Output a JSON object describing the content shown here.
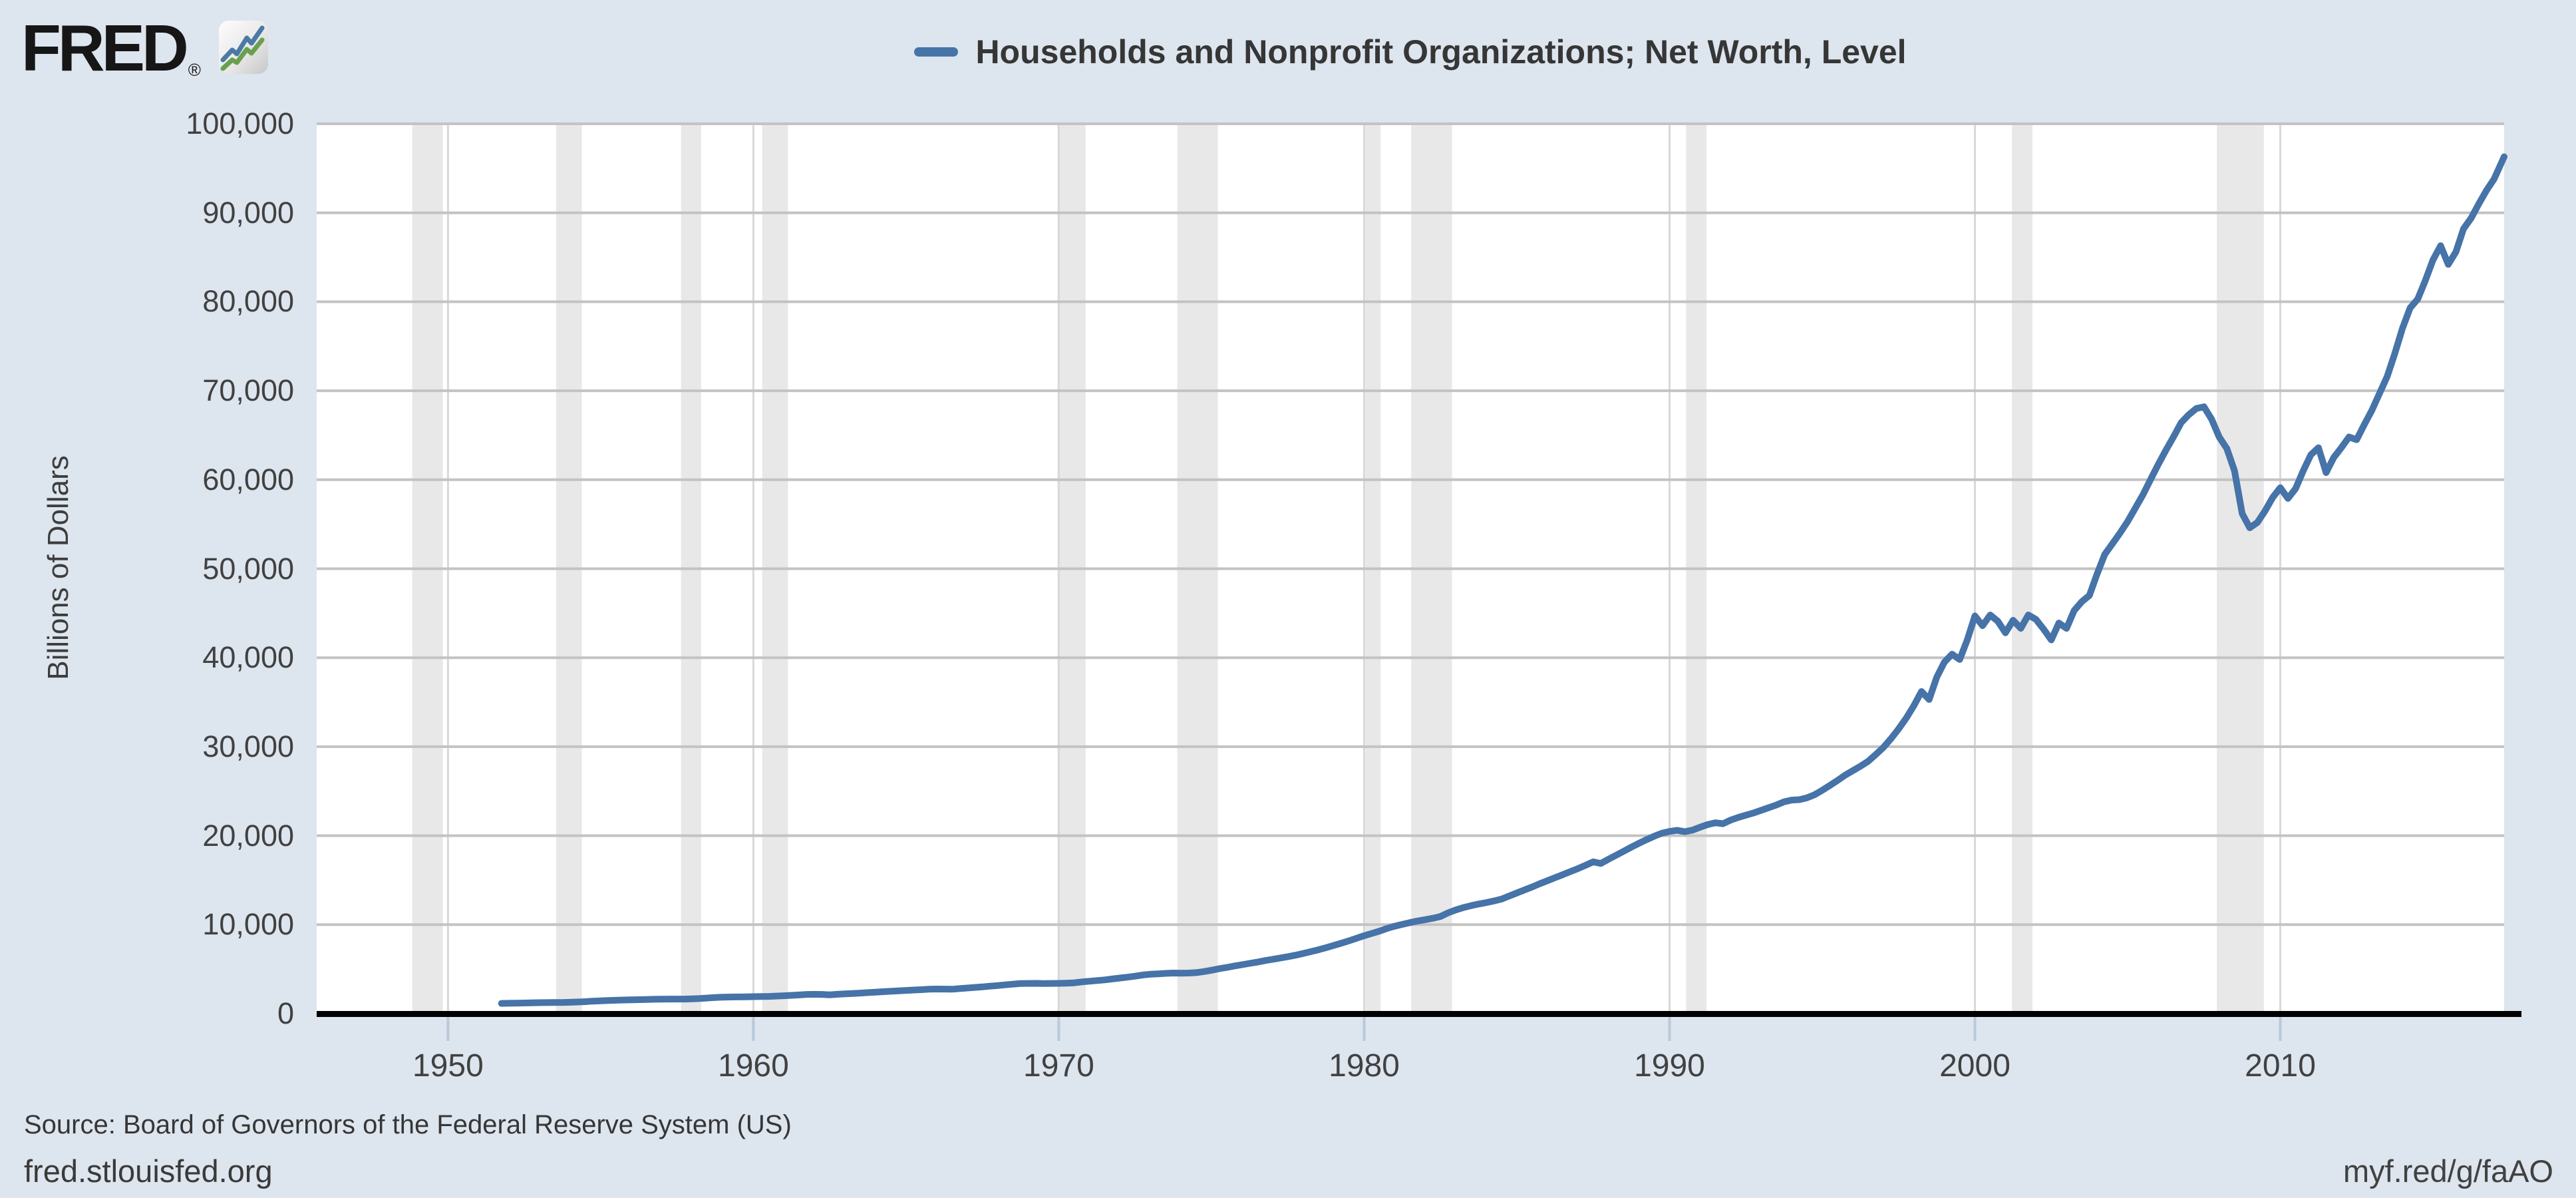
{
  "header": {
    "logo_text": "FRED",
    "registered_mark": "®"
  },
  "footer": {
    "source": "Source: Board of Governors of the Federal Reserve System (US)",
    "site_link": "fred.stlouisfed.org",
    "short_link": "myf.red/g/faAO"
  },
  "colors": {
    "page_bg": "#dde5ee",
    "plot_bg": "#ffffff",
    "recession_band": "#e8e8e8",
    "hgrid": "#c3c3c3",
    "vgrid": "#d9d9d9",
    "line": "#4673a8",
    "axis": "#000000",
    "tick": "#b9c9d9",
    "icon_blue": "#4a7aa5",
    "icon_green": "#68a04f"
  },
  "chart_data": {
    "type": "line",
    "title": "Households and Nonprofit Organizations; Net Worth, Level",
    "xlabel": "",
    "ylabel": "Billions of Dollars",
    "xlim": [
      1945.7,
      2017.33
    ],
    "ylim": [
      0,
      100000
    ],
    "grid": true,
    "legend_position": "top-center",
    "x_ticks": [
      {
        "v": 1950,
        "label": "1950"
      },
      {
        "v": 1960,
        "label": "1960"
      },
      {
        "v": 1970,
        "label": "1970"
      },
      {
        "v": 1980,
        "label": "1980"
      },
      {
        "v": 1990,
        "label": "1990"
      },
      {
        "v": 2000,
        "label": "2000"
      },
      {
        "v": 2010,
        "label": "2010"
      }
    ],
    "y_ticks": [
      {
        "v": 0,
        "label": "0"
      },
      {
        "v": 10000,
        "label": "10,000"
      },
      {
        "v": 20000,
        "label": "20,000"
      },
      {
        "v": 30000,
        "label": "30,000"
      },
      {
        "v": 40000,
        "label": "40,000"
      },
      {
        "v": 50000,
        "label": "50,000"
      },
      {
        "v": 60000,
        "label": "60,000"
      },
      {
        "v": 70000,
        "label": "70,000"
      },
      {
        "v": 80000,
        "label": "80,000"
      },
      {
        "v": 90000,
        "label": "90,000"
      },
      {
        "v": 100000,
        "label": "100,000"
      }
    ],
    "recessions": [
      [
        1948.83,
        1949.83
      ],
      [
        1953.54,
        1954.38
      ],
      [
        1957.63,
        1958.29
      ],
      [
        1960.29,
        1961.13
      ],
      [
        1969.96,
        1970.88
      ],
      [
        1973.88,
        1975.21
      ],
      [
        1980.04,
        1980.54
      ],
      [
        1981.54,
        1982.88
      ],
      [
        1990.54,
        1991.21
      ],
      [
        2001.21,
        2001.88
      ],
      [
        2007.92,
        2009.46
      ]
    ],
    "series": [
      {
        "name": "Households and Nonprofit Organizations; Net Worth, Level",
        "color": "#4673a8",
        "points": [
          [
            1951.75,
            1150
          ],
          [
            1952,
            1170
          ],
          [
            1952.25,
            1185
          ],
          [
            1952.5,
            1200
          ],
          [
            1952.75,
            1220
          ],
          [
            1953,
            1235
          ],
          [
            1953.25,
            1245
          ],
          [
            1953.5,
            1250
          ],
          [
            1953.75,
            1260
          ],
          [
            1954,
            1280
          ],
          [
            1954.25,
            1310
          ],
          [
            1954.5,
            1350
          ],
          [
            1954.75,
            1405
          ],
          [
            1955,
            1445
          ],
          [
            1955.25,
            1480
          ],
          [
            1955.5,
            1505
          ],
          [
            1955.75,
            1530
          ],
          [
            1956,
            1550
          ],
          [
            1956.25,
            1570
          ],
          [
            1956.5,
            1590
          ],
          [
            1956.75,
            1615
          ],
          [
            1957,
            1620
          ],
          [
            1957.25,
            1635
          ],
          [
            1957.5,
            1640
          ],
          [
            1957.75,
            1635
          ],
          [
            1958,
            1660
          ],
          [
            1958.25,
            1700
          ],
          [
            1958.5,
            1755
          ],
          [
            1958.75,
            1810
          ],
          [
            1959,
            1850
          ],
          [
            1959.25,
            1870
          ],
          [
            1959.5,
            1880
          ],
          [
            1959.75,
            1895
          ],
          [
            1960,
            1910
          ],
          [
            1960.25,
            1925
          ],
          [
            1960.5,
            1940
          ],
          [
            1960.75,
            1975
          ],
          [
            1961,
            2015
          ],
          [
            1961.25,
            2060
          ],
          [
            1961.5,
            2105
          ],
          [
            1961.75,
            2165
          ],
          [
            1962,
            2170
          ],
          [
            1962.25,
            2160
          ],
          [
            1962.5,
            2115
          ],
          [
            1962.75,
            2175
          ],
          [
            1963,
            2230
          ],
          [
            1963.25,
            2270
          ],
          [
            1963.5,
            2310
          ],
          [
            1963.75,
            2365
          ],
          [
            1964,
            2415
          ],
          [
            1964.25,
            2465
          ],
          [
            1964.5,
            2510
          ],
          [
            1964.75,
            2560
          ],
          [
            1965,
            2610
          ],
          [
            1965.25,
            2655
          ],
          [
            1965.5,
            2695
          ],
          [
            1965.75,
            2745
          ],
          [
            1966,
            2765
          ],
          [
            1966.25,
            2760
          ],
          [
            1966.5,
            2745
          ],
          [
            1966.75,
            2815
          ],
          [
            1967,
            2880
          ],
          [
            1967.25,
            2950
          ],
          [
            1967.5,
            3010
          ],
          [
            1967.75,
            3090
          ],
          [
            1968,
            3160
          ],
          [
            1968.25,
            3240
          ],
          [
            1968.5,
            3310
          ],
          [
            1968.75,
            3385
          ],
          [
            1969,
            3395
          ],
          [
            1969.25,
            3400
          ],
          [
            1969.5,
            3390
          ],
          [
            1969.75,
            3395
          ],
          [
            1970,
            3405
          ],
          [
            1970.25,
            3425
          ],
          [
            1970.5,
            3465
          ],
          [
            1970.75,
            3565
          ],
          [
            1971,
            3640
          ],
          [
            1971.25,
            3720
          ],
          [
            1971.5,
            3790
          ],
          [
            1971.75,
            3895
          ],
          [
            1972,
            4000
          ],
          [
            1972.25,
            4100
          ],
          [
            1972.5,
            4210
          ],
          [
            1972.75,
            4345
          ],
          [
            1973,
            4425
          ],
          [
            1973.25,
            4475
          ],
          [
            1973.5,
            4525
          ],
          [
            1973.75,
            4565
          ],
          [
            1974,
            4550
          ],
          [
            1974.25,
            4560
          ],
          [
            1974.5,
            4605
          ],
          [
            1974.75,
            4725
          ],
          [
            1975,
            4880
          ],
          [
            1975.25,
            5045
          ],
          [
            1975.5,
            5190
          ],
          [
            1975.75,
            5355
          ],
          [
            1976,
            5500
          ],
          [
            1976.25,
            5645
          ],
          [
            1976.5,
            5790
          ],
          [
            1976.75,
            5960
          ],
          [
            1977,
            6100
          ],
          [
            1977.25,
            6250
          ],
          [
            1977.5,
            6400
          ],
          [
            1977.75,
            6570
          ],
          [
            1978,
            6760
          ],
          [
            1978.25,
            6960
          ],
          [
            1978.5,
            7170
          ],
          [
            1978.75,
            7410
          ],
          [
            1979,
            7660
          ],
          [
            1979.25,
            7915
          ],
          [
            1979.5,
            8180
          ],
          [
            1979.75,
            8465
          ],
          [
            1980,
            8760
          ],
          [
            1980.25,
            9010
          ],
          [
            1980.5,
            9265
          ],
          [
            1980.75,
            9575
          ],
          [
            1981,
            9830
          ],
          [
            1981.25,
            10030
          ],
          [
            1981.5,
            10230
          ],
          [
            1981.75,
            10410
          ],
          [
            1982,
            10560
          ],
          [
            1982.25,
            10720
          ],
          [
            1982.5,
            10920
          ],
          [
            1982.75,
            11330
          ],
          [
            1983,
            11650
          ],
          [
            1983.25,
            11920
          ],
          [
            1983.5,
            12130
          ],
          [
            1983.75,
            12320
          ],
          [
            1984,
            12480
          ],
          [
            1984.25,
            12660
          ],
          [
            1984.5,
            12870
          ],
          [
            1984.75,
            13220
          ],
          [
            1985,
            13560
          ],
          [
            1985.25,
            13900
          ],
          [
            1985.5,
            14230
          ],
          [
            1985.75,
            14600
          ],
          [
            1986,
            14940
          ],
          [
            1986.25,
            15280
          ],
          [
            1986.5,
            15610
          ],
          [
            1986.75,
            15960
          ],
          [
            1987,
            16300
          ],
          [
            1987.25,
            16670
          ],
          [
            1987.5,
            17060
          ],
          [
            1987.75,
            16870
          ],
          [
            1988,
            17350
          ],
          [
            1988.25,
            17800
          ],
          [
            1988.5,
            18250
          ],
          [
            1988.75,
            18710
          ],
          [
            1989,
            19150
          ],
          [
            1989.25,
            19560
          ],
          [
            1989.5,
            19940
          ],
          [
            1989.75,
            20280
          ],
          [
            1990,
            20480
          ],
          [
            1990.25,
            20600
          ],
          [
            1990.5,
            20450
          ],
          [
            1990.75,
            20620
          ],
          [
            1991,
            20950
          ],
          [
            1991.25,
            21250
          ],
          [
            1991.5,
            21450
          ],
          [
            1991.75,
            21350
          ],
          [
            1992,
            21750
          ],
          [
            1992.25,
            22050
          ],
          [
            1992.5,
            22300
          ],
          [
            1992.75,
            22550
          ],
          [
            1993,
            22850
          ],
          [
            1993.25,
            23150
          ],
          [
            1993.5,
            23450
          ],
          [
            1993.75,
            23800
          ],
          [
            1994,
            24000
          ],
          [
            1994.25,
            24050
          ],
          [
            1994.5,
            24250
          ],
          [
            1994.75,
            24600
          ],
          [
            1995,
            25100
          ],
          [
            1995.25,
            25650
          ],
          [
            1995.5,
            26200
          ],
          [
            1995.75,
            26800
          ],
          [
            1996,
            27300
          ],
          [
            1996.25,
            27800
          ],
          [
            1996.5,
            28350
          ],
          [
            1996.75,
            29100
          ],
          [
            1997,
            29900
          ],
          [
            1997.25,
            30900
          ],
          [
            1997.5,
            32000
          ],
          [
            1997.75,
            33200
          ],
          [
            1998,
            34600
          ],
          [
            1998.25,
            36200
          ],
          [
            1998.5,
            35300
          ],
          [
            1998.75,
            37800
          ],
          [
            1999,
            39500
          ],
          [
            1999.25,
            40400
          ],
          [
            1999.5,
            39800
          ],
          [
            1999.75,
            42000
          ],
          [
            2000,
            44700
          ],
          [
            2000.25,
            43600
          ],
          [
            2000.5,
            44800
          ],
          [
            2000.75,
            44100
          ],
          [
            2001,
            42800
          ],
          [
            2001.25,
            44200
          ],
          [
            2001.5,
            43300
          ],
          [
            2001.75,
            44800
          ],
          [
            2002,
            44300
          ],
          [
            2002.25,
            43200
          ],
          [
            2002.5,
            42000
          ],
          [
            2002.75,
            43900
          ],
          [
            2003,
            43300
          ],
          [
            2003.25,
            45300
          ],
          [
            2003.5,
            46300
          ],
          [
            2003.75,
            47000
          ],
          [
            2004,
            49400
          ],
          [
            2004.25,
            51600
          ],
          [
            2004.5,
            52800
          ],
          [
            2004.75,
            54000
          ],
          [
            2005,
            55300
          ],
          [
            2005.25,
            56800
          ],
          [
            2005.5,
            58300
          ],
          [
            2005.75,
            60000
          ],
          [
            2006,
            61700
          ],
          [
            2006.25,
            63300
          ],
          [
            2006.5,
            64800
          ],
          [
            2006.75,
            66400
          ],
          [
            2007,
            67300
          ],
          [
            2007.25,
            68000
          ],
          [
            2007.5,
            68200
          ],
          [
            2007.75,
            66800
          ],
          [
            2008,
            64800
          ],
          [
            2008.25,
            63500
          ],
          [
            2008.5,
            61000
          ],
          [
            2008.75,
            56200
          ],
          [
            2009,
            54600
          ],
          [
            2009.25,
            55200
          ],
          [
            2009.5,
            56500
          ],
          [
            2009.75,
            58000
          ],
          [
            2010,
            59100
          ],
          [
            2010.25,
            57900
          ],
          [
            2010.5,
            59000
          ],
          [
            2010.75,
            61000
          ],
          [
            2011,
            62800
          ],
          [
            2011.25,
            63600
          ],
          [
            2011.5,
            60800
          ],
          [
            2011.75,
            62500
          ],
          [
            2012,
            63600
          ],
          [
            2012.25,
            64800
          ],
          [
            2012.5,
            64500
          ],
          [
            2012.75,
            66200
          ],
          [
            2013,
            67800
          ],
          [
            2013.25,
            69700
          ],
          [
            2013.5,
            71600
          ],
          [
            2013.75,
            74200
          ],
          [
            2014,
            77000
          ],
          [
            2014.25,
            79300
          ],
          [
            2014.5,
            80300
          ],
          [
            2014.75,
            82400
          ],
          [
            2015,
            84700
          ],
          [
            2015.25,
            86300
          ],
          [
            2015.5,
            84200
          ],
          [
            2015.75,
            85600
          ],
          [
            2016,
            88200
          ],
          [
            2016.25,
            89400
          ],
          [
            2016.5,
            91000
          ],
          [
            2016.75,
            92500
          ],
          [
            2017,
            93800
          ],
          [
            2017.33,
            96300
          ]
        ]
      }
    ]
  }
}
